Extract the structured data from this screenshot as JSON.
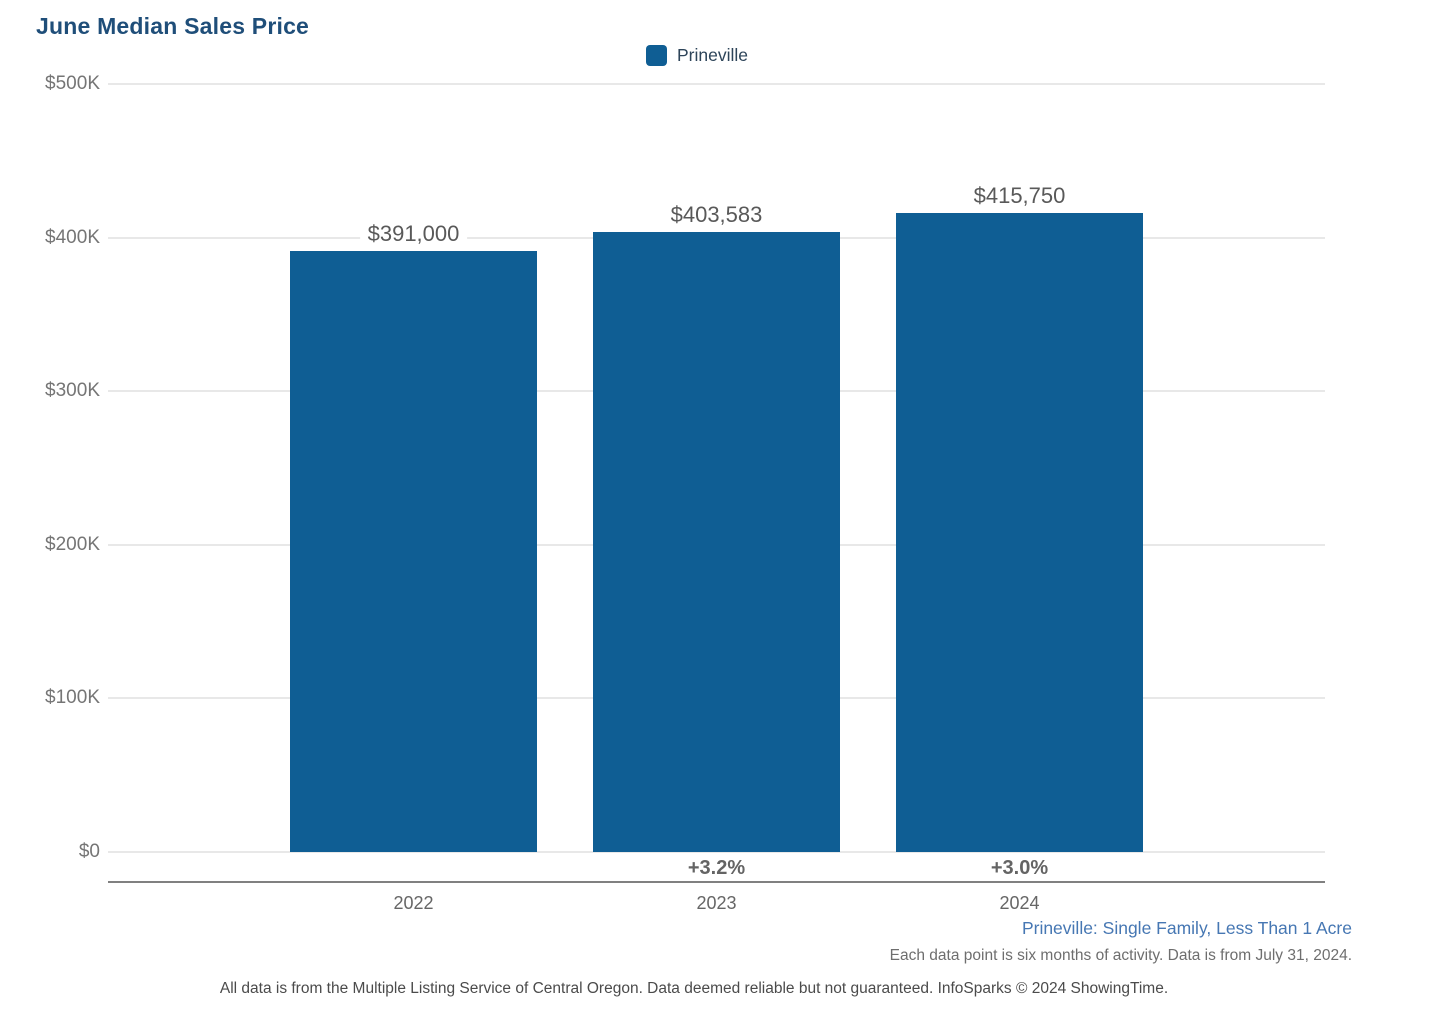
{
  "chart_data": {
    "type": "bar",
    "title": "June Median Sales Price",
    "legend_label": "Prineville",
    "legend_position": "top-center",
    "categories": [
      "2022",
      "2023",
      "2024"
    ],
    "series": [
      {
        "name": "Prineville",
        "values": [
          391000,
          403583,
          415750
        ],
        "value_labels": [
          "$391,000",
          "$403,583",
          "$415,750"
        ],
        "pct_change_labels": [
          null,
          "+3.2%",
          "+3.0%"
        ],
        "color": "#0f5e94"
      }
    ],
    "xlabel": "",
    "ylabel": "",
    "ylim": [
      0,
      500000
    ],
    "y_ticks": [
      "$500K",
      "$400K",
      "$300K",
      "$200K",
      "$100K",
      "$0"
    ],
    "grid": true
  },
  "footer": {
    "series_note": "Prineville: Single Family, Less Than 1 Acre",
    "data_note": "Each data point is six months of activity. Data is from July 31, 2024.",
    "disclaimer": "All data is from the Multiple Listing Service of Central Oregon. Data deemed reliable but not guaranteed. InfoSparks © 2024 ShowingTime."
  },
  "colors": {
    "title": "#1f4e79",
    "bar": "#0f5e94",
    "value_label": "#595959",
    "pct_label": "#646464",
    "tick_label": "#757575",
    "year_label": "#666666",
    "gridline": "#e8e8e8",
    "axis_line": "#808080",
    "series_note": "#4677b3",
    "legend_text": "#2d4459"
  }
}
